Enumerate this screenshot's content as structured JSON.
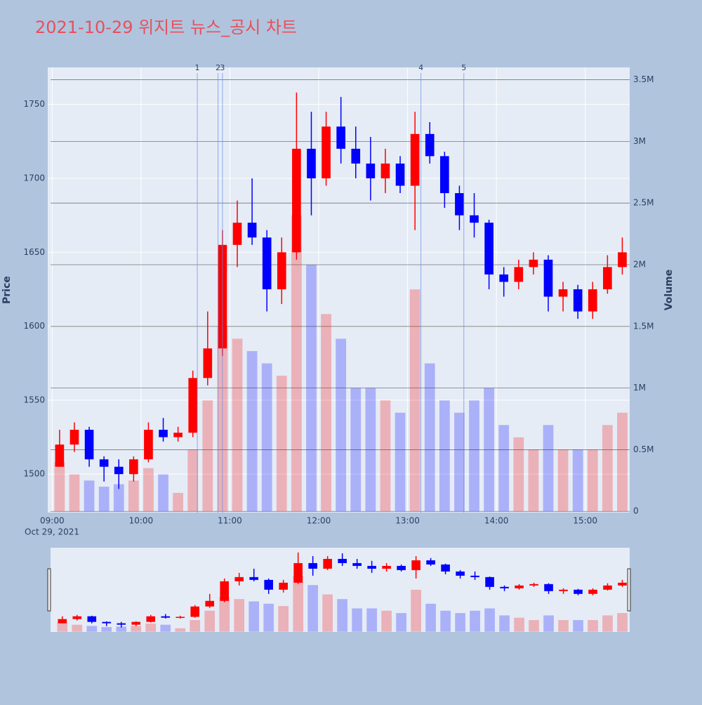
{
  "chart_data": {
    "type": "candlestick",
    "title": "2021-10-29 위지트 뉴스_공시 차트",
    "date_label": "Oct 29, 2021",
    "y_label": "Price",
    "y2_label": "Volume",
    "increasing_color": "#ff0000",
    "decreasing_color": "#0000ff",
    "x": [
      "09:00",
      "09:10",
      "09:20",
      "09:30",
      "09:40",
      "09:50",
      "10:00",
      "10:10",
      "10:20",
      "10:30",
      "10:40",
      "10:50",
      "11:00",
      "11:10",
      "11:20",
      "11:30",
      "11:40",
      "11:50",
      "12:00",
      "12:10",
      "12:20",
      "12:30",
      "12:40",
      "12:50",
      "13:00",
      "13:10",
      "13:20",
      "13:30",
      "13:40",
      "13:50",
      "14:00",
      "14:10",
      "14:20",
      "14:30",
      "14:40",
      "14:50",
      "15:00",
      "15:10",
      "15:20"
    ],
    "open": [
      1505,
      1520,
      1530,
      1510,
      1505,
      1500,
      1510,
      1530,
      1525,
      1528,
      1565,
      1585,
      1655,
      1670,
      1660,
      1625,
      1650,
      1720,
      1700,
      1735,
      1720,
      1710,
      1700,
      1710,
      1695,
      1730,
      1715,
      1690,
      1675,
      1670,
      1635,
      1630,
      1640,
      1645,
      1620,
      1625,
      1610,
      1625,
      1640
    ],
    "high": [
      1530,
      1535,
      1532,
      1512,
      1510,
      1512,
      1535,
      1538,
      1532,
      1570,
      1610,
      1665,
      1685,
      1700,
      1665,
      1660,
      1758,
      1745,
      1745,
      1755,
      1735,
      1728,
      1720,
      1715,
      1745,
      1738,
      1718,
      1695,
      1690,
      1672,
      1640,
      1645,
      1650,
      1648,
      1630,
      1628,
      1630,
      1648,
      1660
    ],
    "low": [
      1505,
      1515,
      1505,
      1495,
      1490,
      1495,
      1508,
      1522,
      1522,
      1525,
      1560,
      1580,
      1640,
      1655,
      1610,
      1615,
      1645,
      1675,
      1695,
      1710,
      1700,
      1685,
      1690,
      1690,
      1665,
      1710,
      1680,
      1665,
      1660,
      1625,
      1620,
      1625,
      1635,
      1610,
      1610,
      1605,
      1605,
      1622,
      1635
    ],
    "close": [
      1520,
      1530,
      1510,
      1505,
      1500,
      1510,
      1530,
      1525,
      1528,
      1565,
      1585,
      1655,
      1670,
      1660,
      1625,
      1650,
      1720,
      1700,
      1735,
      1720,
      1710,
      1700,
      1710,
      1695,
      1730,
      1715,
      1690,
      1675,
      1670,
      1635,
      1630,
      1640,
      1645,
      1620,
      1625,
      1610,
      1625,
      1640,
      1650
    ],
    "volume": [
      400000,
      300000,
      250000,
      200000,
      220000,
      250000,
      350000,
      300000,
      150000,
      500000,
      900000,
      1500000,
      1400000,
      1300000,
      1200000,
      1100000,
      2400000,
      2000000,
      1600000,
      1400000,
      1000000,
      1000000,
      900000,
      800000,
      1800000,
      1200000,
      900000,
      800000,
      900000,
      1000000,
      700000,
      600000,
      500000,
      700000,
      500000,
      500000,
      500000,
      700000,
      800000
    ],
    "xlim": [
      "08:57",
      "15:30"
    ],
    "xticks": [
      "09:00",
      "10:00",
      "11:00",
      "12:00",
      "13:00",
      "14:00",
      "15:00"
    ],
    "ylim": [
      1474,
      1775
    ],
    "yticks": [
      1500,
      1550,
      1600,
      1650,
      1700,
      1750
    ],
    "y2lim": [
      -10000,
      3600000
    ],
    "y2ticks": [
      0,
      {
        "value": 500000,
        "label": "0.5M"
      },
      {
        "value": 1000000,
        "label": "1M"
      },
      {
        "value": 1500000,
        "label": "1.5M"
      },
      {
        "value": 2000000,
        "label": "2M"
      },
      {
        "value": 2500000,
        "label": "2.5M"
      },
      {
        "value": 3000000,
        "label": "3M"
      },
      {
        "value": 3500000,
        "label": "3.5M"
      }
    ],
    "annotations": [
      {
        "label": "1",
        "x": "10:38"
      },
      {
        "label": "2",
        "x": "10:52"
      },
      {
        "label": "3",
        "x": "10:55"
      },
      {
        "label": "4",
        "x": "13:09"
      },
      {
        "label": "5",
        "x": "13:38"
      }
    ],
    "grid": true,
    "range_slider": true
  }
}
